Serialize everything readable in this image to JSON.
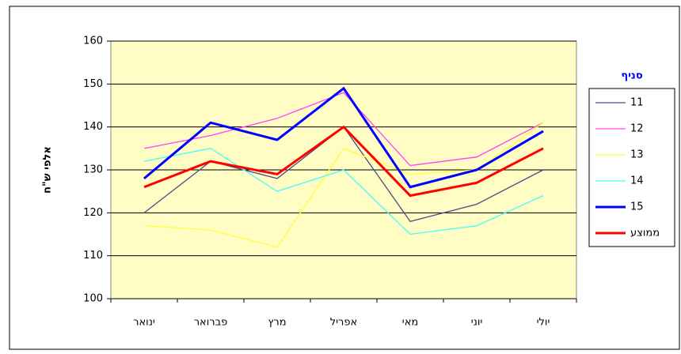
{
  "chart_data": {
    "type": "line",
    "y_label": "אלפי ש\"ח",
    "legend_title": "סניף",
    "categories": [
      "ינואר",
      "פברואר",
      "מרץ",
      "אפריל",
      "מאי",
      "יוני",
      "יולי"
    ],
    "series": [
      {
        "name": "11",
        "color": "#4b4b8c",
        "values": [
          120,
          132,
          128,
          140,
          118,
          122,
          130
        ]
      },
      {
        "name": "12",
        "color": "#ff40ff",
        "values": [
          135,
          138,
          142,
          148,
          131,
          133,
          141
        ]
      },
      {
        "name": "13",
        "color": "#ffff40",
        "values": [
          117,
          116,
          112,
          135,
          129,
          130,
          141
        ]
      },
      {
        "name": "14",
        "color": "#40ffff",
        "values": [
          132,
          135,
          125,
          130,
          115,
          117,
          124
        ]
      },
      {
        "name": "15",
        "color": "#0000ff",
        "values": [
          128,
          141,
          137,
          149,
          126,
          130,
          139
        ]
      },
      {
        "name": "ממוצע",
        "color": "#ff0000",
        "values": [
          126,
          132,
          129,
          140,
          124,
          127,
          135
        ]
      }
    ],
    "ylim": [
      100,
      160
    ],
    "yticks": [
      100,
      110,
      120,
      130,
      140,
      150,
      160
    ],
    "grid": true,
    "legend": "right"
  }
}
